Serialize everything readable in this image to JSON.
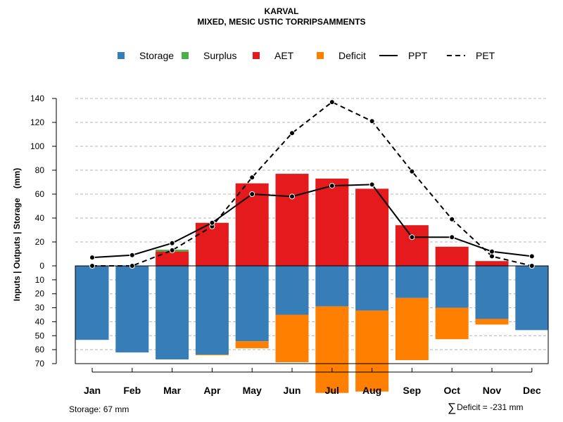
{
  "header": {
    "title": "KARVAL",
    "subtitle": "MIXED, MESIC USTIC TORRIPSAMMENTS"
  },
  "footer": {
    "storage": "Storage: 67 mm",
    "deficit_symbol": "∑",
    "deficit": "Deficit = -231 mm"
  },
  "colors": {
    "storage": "#377EB8",
    "surplus": "#4DAF4A",
    "aet": "#E41A1C",
    "deficit": "#FF7F00",
    "line": "#000000",
    "highlight": "#FFA500"
  },
  "chart_data": {
    "type": "bar",
    "title": "KARVAL",
    "subtitle": "MIXED, MESIC USTIC TORRIPSAMMENTS",
    "ylabel": "Inputs | Outputs | Storage    (mm)",
    "categories": [
      "Jan",
      "Feb",
      "Mar",
      "Apr",
      "May",
      "Jun",
      "Jul",
      "Aug",
      "Sep",
      "Oct",
      "Nov",
      "Dec"
    ],
    "highlight_category": "Jul",
    "ylim_top": [
      0,
      140
    ],
    "ylim_bottom": [
      0,
      70
    ],
    "yticks_top": [
      "0",
      "20",
      "40",
      "60",
      "80",
      "100",
      "120",
      "140"
    ],
    "yticks_bottom": [
      "10",
      "20",
      "30",
      "40",
      "50",
      "60",
      "70"
    ],
    "grid": true,
    "legend_position": "top",
    "legend": [
      {
        "label": "Storage",
        "kind": "box",
        "color": "#377EB8"
      },
      {
        "label": "Surplus",
        "kind": "box",
        "color": "#4DAF4A"
      },
      {
        "label": "AET",
        "kind": "box",
        "color": "#E41A1C"
      },
      {
        "label": "Deficit",
        "kind": "box",
        "color": "#FF7F00"
      },
      {
        "label": "PPT",
        "kind": "solid"
      },
      {
        "label": "PET",
        "kind": "dashed"
      }
    ],
    "series": [
      {
        "name": "AET",
        "values": [
          0,
          0,
          12,
          36,
          69,
          77,
          73,
          64.5,
          34,
          16,
          4,
          0
        ]
      },
      {
        "name": "Surplus",
        "values": [
          0,
          0,
          1.5,
          0,
          0,
          0,
          0,
          0,
          0,
          0,
          0,
          0
        ]
      },
      {
        "name": "Storage",
        "values": [
          53,
          62,
          67,
          63.5,
          54,
          35,
          29,
          32,
          23,
          30,
          38,
          46
        ]
      },
      {
        "name": "Deficit",
        "values": [
          0,
          0,
          0,
          0.5,
          5,
          34,
          62,
          58,
          44.5,
          22.5,
          4,
          0
        ]
      },
      {
        "name": "PPT",
        "values": [
          7,
          9,
          19,
          36,
          60,
          58,
          67,
          68,
          24,
          24,
          12,
          8
        ]
      },
      {
        "name": "PET",
        "values": [
          0,
          0,
          13,
          33,
          74,
          111,
          137,
          121,
          79,
          39,
          8,
          0
        ]
      }
    ]
  }
}
